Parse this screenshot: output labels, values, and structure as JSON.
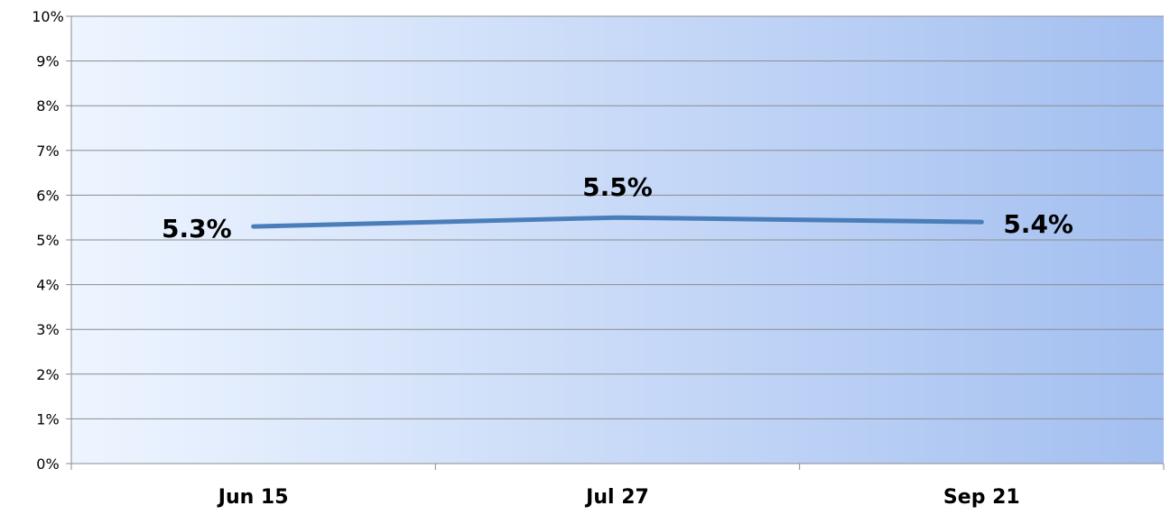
{
  "chart_data": {
    "type": "line",
    "categories": [
      "Jun 15",
      "Jul 27",
      "Sep 21"
    ],
    "series": [
      {
        "values": [
          5.3,
          5.5,
          5.4
        ],
        "data_labels": [
          "5.3%",
          "5.5%",
          "5.4%"
        ]
      }
    ],
    "ylim": [
      0,
      10
    ],
    "y_ticks": [
      "0%",
      "1%",
      "2%",
      "3%",
      "4%",
      "5%",
      "6%",
      "7%",
      "8%",
      "9%",
      "10%"
    ],
    "grid": true,
    "legend": "none",
    "colors": {
      "line": "#4a7ebb",
      "plot_bg_start": "#eef5ff",
      "plot_bg_end": "#a3bff0",
      "grid": "#8c8c8c",
      "axis": "#8c8c8c"
    }
  }
}
